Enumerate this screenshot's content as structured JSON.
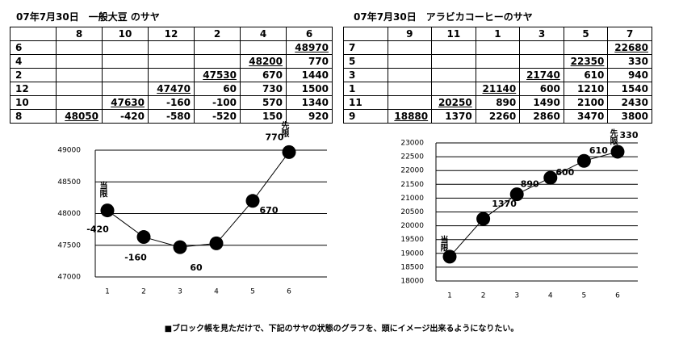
{
  "tables": [
    {
      "title": "07年7月30日　一般大豆 のサヤ",
      "header": [
        null,
        "8",
        "10",
        "12",
        "2",
        "4",
        "6"
      ],
      "rows": [
        [
          "6",
          null,
          null,
          null,
          null,
          null,
          48970
        ],
        [
          "4",
          null,
          null,
          null,
          null,
          48200,
          770
        ],
        [
          "2",
          null,
          null,
          null,
          47530,
          670,
          1440
        ],
        [
          "12",
          null,
          null,
          47470,
          60,
          730,
          1500
        ],
        [
          "10",
          null,
          47630,
          -160,
          -100,
          570,
          1340
        ],
        [
          "8",
          48050,
          -420,
          -580,
          -520,
          150,
          920
        ]
      ]
    },
    {
      "title": "07年7月30日　アラビカコーヒーのサヤ",
      "header": [
        null,
        "9",
        "11",
        "1",
        "3",
        "5",
        "7"
      ],
      "rows": [
        [
          "7",
          null,
          null,
          null,
          null,
          null,
          22680
        ],
        [
          "5",
          null,
          null,
          null,
          null,
          22350,
          330
        ],
        [
          "3",
          null,
          null,
          null,
          21740,
          610,
          940
        ],
        [
          "1",
          null,
          null,
          21140,
          600,
          1210,
          1540
        ],
        [
          "11",
          null,
          20250,
          890,
          1490,
          2100,
          2430
        ],
        [
          "9",
          18880,
          1370,
          2260,
          2860,
          3470,
          3800
        ]
      ]
    }
  ],
  "chart_data": [
    {
      "type": "line",
      "categories": [
        1,
        2,
        3,
        4,
        5,
        6
      ],
      "values": [
        48050,
        47630,
        47470,
        47530,
        48200,
        48970
      ],
      "color": "#000000",
      "ylim": [
        47000,
        49000
      ],
      "yticks": [
        47000,
        47500,
        48000,
        48500,
        49000
      ],
      "grid": true,
      "annotations": [
        "当限",
        "先限"
      ],
      "diff_labels": [
        -420,
        -160,
        60,
        670,
        770
      ]
    },
    {
      "type": "line",
      "categories": [
        1,
        2,
        3,
        4,
        5,
        6
      ],
      "values": [
        18880,
        20250,
        21140,
        21740,
        22350,
        22680
      ],
      "color": "#000000",
      "ylim": [
        18000,
        23000
      ],
      "yticks": [
        18000,
        18500,
        19000,
        19500,
        20000,
        20500,
        21000,
        21500,
        22000,
        22500,
        23000
      ],
      "grid": true,
      "annotations": [
        "当限",
        "先限"
      ],
      "diff_labels": [
        1370,
        890,
        600,
        610,
        330
      ]
    }
  ],
  "caption": "■ブロック帳を見ただけで、下記のサヤの状態のグラフを、頭にイメージ出来るようになりたい。"
}
